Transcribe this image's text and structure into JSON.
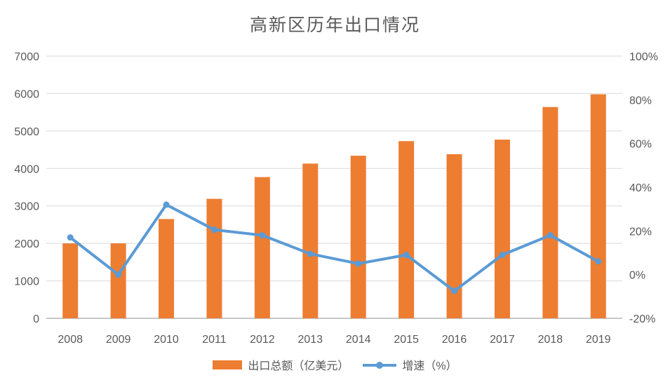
{
  "chart_data": {
    "type": "combo-bar-line",
    "title": "高新区历年出口情况",
    "categories": [
      "2008",
      "2009",
      "2010",
      "2011",
      "2012",
      "2013",
      "2014",
      "2015",
      "2016",
      "2017",
      "2018",
      "2019"
    ],
    "series": [
      {
        "name": "出口总额（亿美元）",
        "type": "bar",
        "axis": "left",
        "color": "#ED7D31",
        "values": [
          2000,
          2000,
          2650,
          3190,
          3770,
          4130,
          4340,
          4730,
          4380,
          4770,
          5640,
          5980
        ]
      },
      {
        "name": "增速（%）",
        "type": "line",
        "axis": "right",
        "color": "#5B9BD5",
        "values": [
          17,
          0,
          32,
          20.5,
          18,
          9.5,
          5,
          9,
          -7.5,
          9,
          18,
          6
        ]
      }
    ],
    "left_axis": {
      "min": 0,
      "max": 7000,
      "ticks": [
        "0",
        "1000",
        "2000",
        "3000",
        "4000",
        "5000",
        "6000",
        "7000"
      ]
    },
    "right_axis": {
      "min": -20,
      "max": 100,
      "ticks": [
        "-20%",
        "0%",
        "20%",
        "40%",
        "60%",
        "80%",
        "100%"
      ]
    },
    "grid": true,
    "legend_position": "bottom",
    "colors": {
      "grid_line": "#D9D9D9",
      "baseline": "#C8C8C8",
      "tick_label": "#595959",
      "title": "#595959",
      "background": "#FFFFFF"
    }
  },
  "legend": {
    "items": [
      {
        "label": "出口总额（亿美元）"
      },
      {
        "label": "增速（%）"
      }
    ]
  }
}
